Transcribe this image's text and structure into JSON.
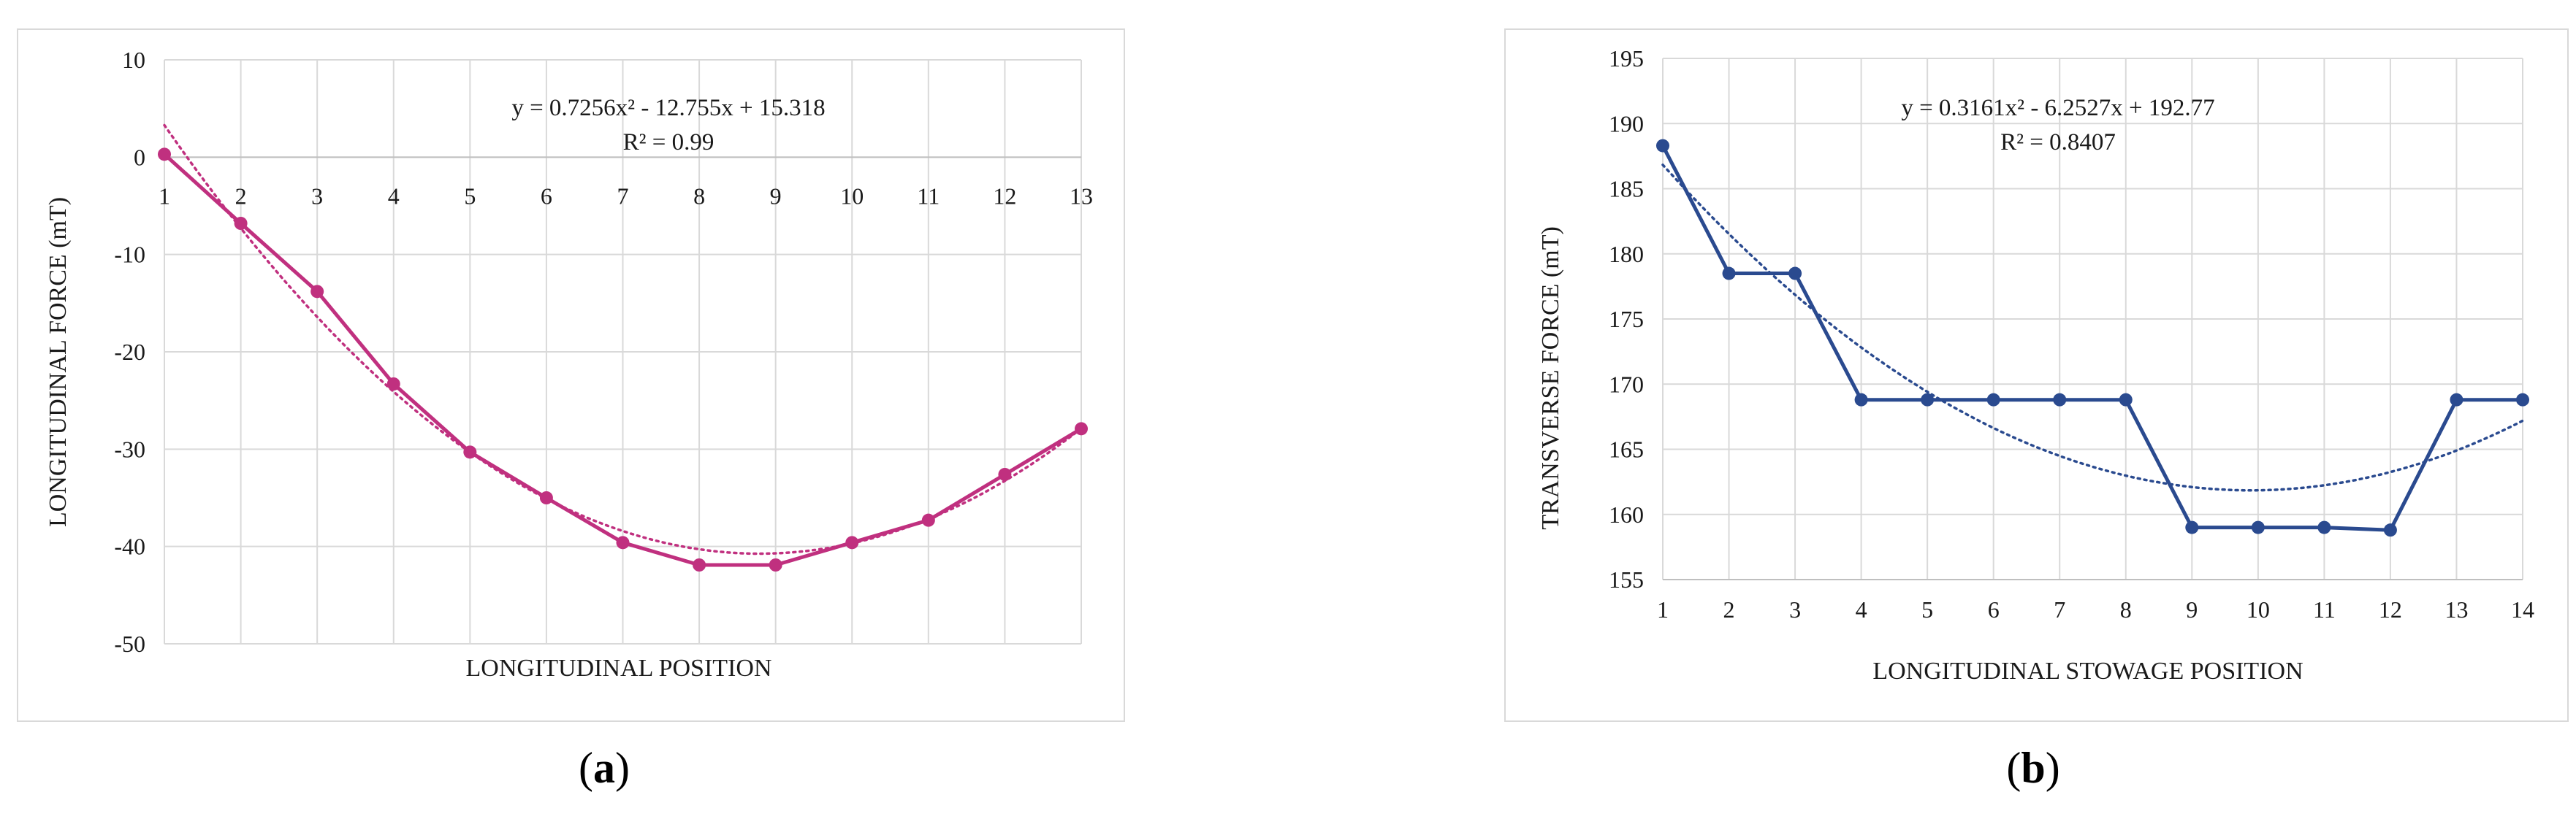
{
  "chart_data": [
    {
      "type": "line",
      "panel_label": "(a)",
      "xlabel": "LONGITUDINAL POSITION",
      "ylabel": "LONGITUDINAL FORCE (mT)",
      "ylim": [
        -50,
        10
      ],
      "yticks": [
        10,
        0,
        -10,
        -20,
        -30,
        -40,
        -50
      ],
      "x": [
        1,
        2,
        3,
        4,
        5,
        6,
        7,
        8,
        9,
        10,
        11,
        12,
        13
      ],
      "x_axis_at_y": 0,
      "grid": true,
      "series": [
        {
          "values": [
            0.3,
            -6.8,
            -13.8,
            -23.3,
            -30.3,
            -35.0,
            -39.6,
            -41.9,
            -41.9,
            -39.6,
            -37.3,
            -32.6,
            -27.9
          ]
        }
      ],
      "trendline": {
        "kind": "polynomial",
        "coefficients": [
          0.7256,
          -12.755,
          15.318
        ],
        "equation": "y = 0.7256x² - 12.755x + 15.318",
        "r_squared": "R² = 0.99"
      },
      "color": "#c0307f"
    },
    {
      "type": "line",
      "panel_label": "(b)",
      "xlabel": "LONGITUDINAL STOWAGE POSITION",
      "ylabel": "TRANSVERSE FORCE (mT)",
      "ylim": [
        155,
        195
      ],
      "yticks": [
        195,
        190,
        185,
        180,
        175,
        170,
        165,
        160,
        155
      ],
      "x": [
        1,
        2,
        3,
        4,
        5,
        6,
        7,
        8,
        9,
        10,
        11,
        12,
        13,
        14
      ],
      "grid": true,
      "series": [
        {
          "values": [
            188.3,
            178.5,
            178.5,
            168.8,
            168.8,
            168.8,
            168.8,
            168.8,
            159.0,
            159.0,
            159.0,
            158.8,
            168.8,
            168.8
          ]
        }
      ],
      "trendline": {
        "kind": "polynomial",
        "coefficients": [
          0.3161,
          -6.2527,
          192.77
        ],
        "equation": "y = 0.3161x² - 6.2527x + 192.77",
        "r_squared": "R² = 0.8407"
      },
      "color": "#2a4a8f"
    }
  ],
  "captions": {
    "a": {
      "open": "(",
      "letter": "a",
      "close": ")"
    },
    "b": {
      "open": "(",
      "letter": "b",
      "close": ")"
    }
  }
}
